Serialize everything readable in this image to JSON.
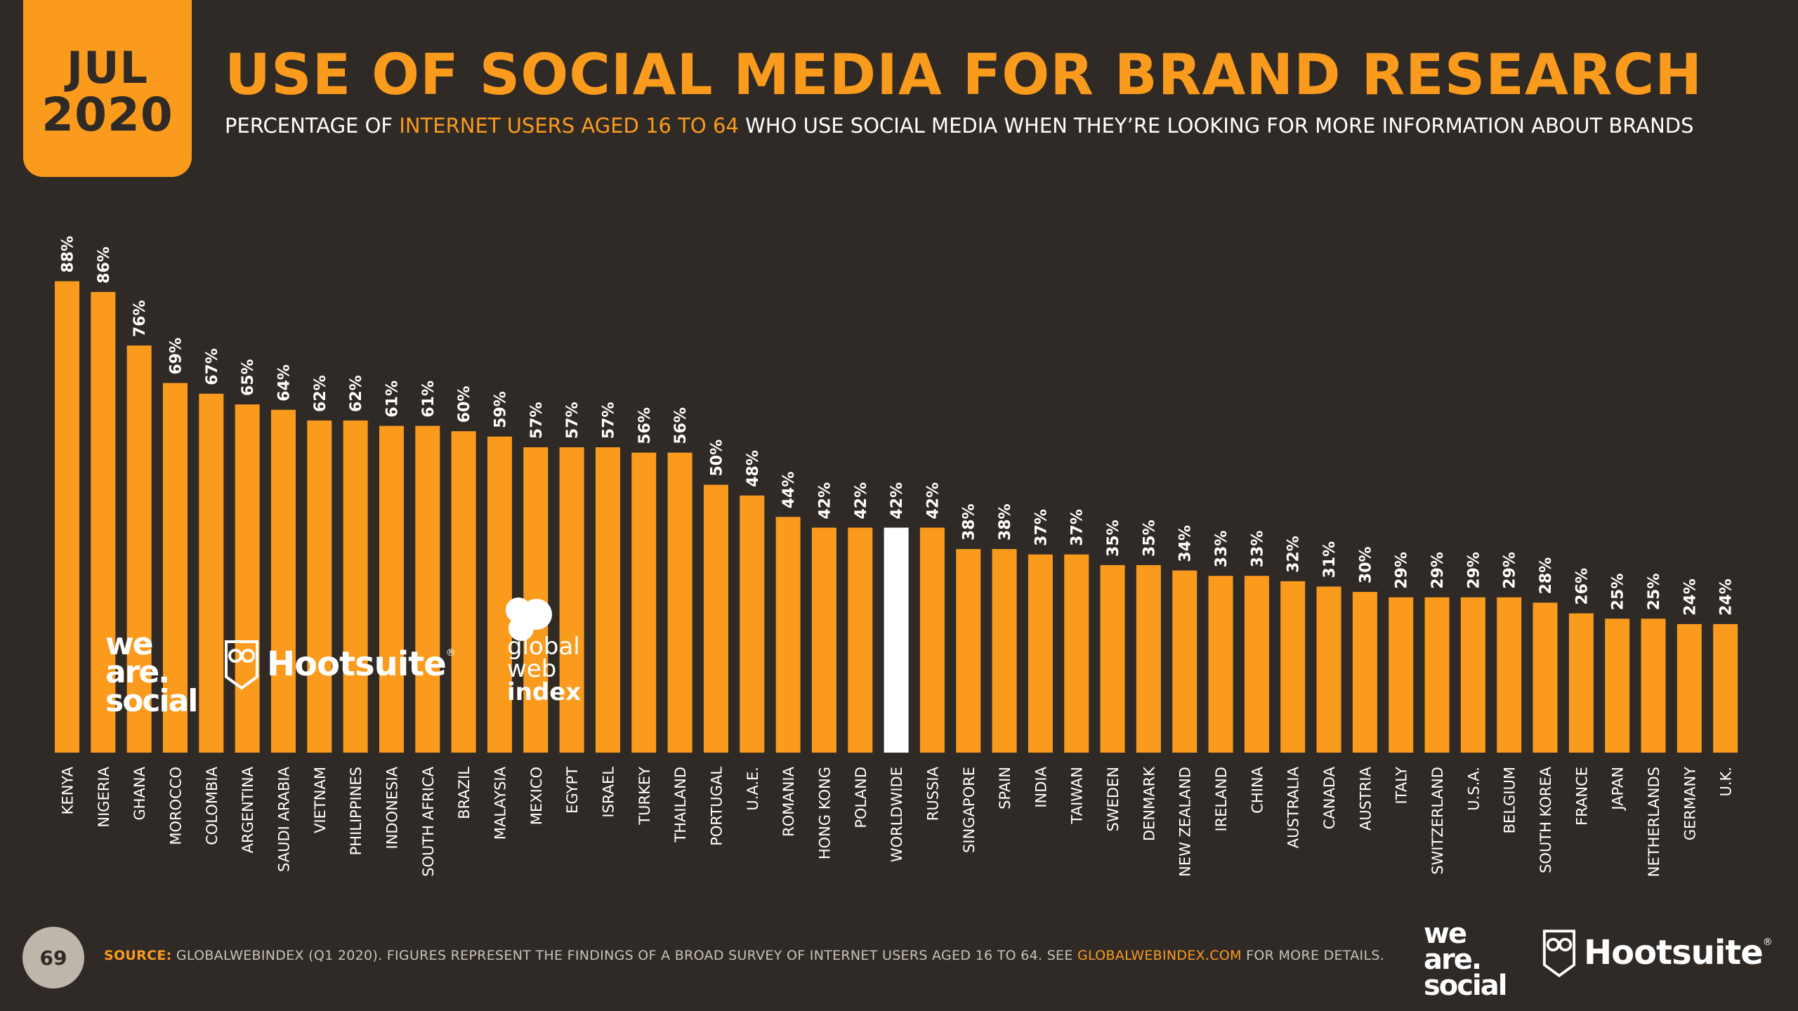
{
  "badge": {
    "month": "JUL",
    "year": "2020"
  },
  "title": "USE OF SOCIAL MEDIA FOR BRAND RESEARCH",
  "subtitle": {
    "part1": "PERCENTAGE OF ",
    "highlight": "INTERNET USERS AGED 16 TO 64",
    "part2": " WHO USE SOCIAL MEDIA WHEN THEY’RE LOOKING FOR MORE INFORMATION ABOUT BRANDS"
  },
  "colors": {
    "background": "#2f2a26",
    "accent": "#fb9b1e",
    "highlight_bar": "#ffffff"
  },
  "chart_data": {
    "type": "bar",
    "title": "USE OF SOCIAL MEDIA FOR BRAND RESEARCH",
    "xlabel": "",
    "ylabel": "",
    "ylim": [
      0,
      100
    ],
    "value_suffix": "%",
    "highlight_category": "WORLDWIDE",
    "categories": [
      "KENYA",
      "NIGERIA",
      "GHANA",
      "MOROCCO",
      "COLOMBIA",
      "ARGENTINA",
      "SAUDI ARABIA",
      "VIETNAM",
      "PHILIPPINES",
      "INDONESIA",
      "SOUTH AFRICA",
      "BRAZIL",
      "MALAYSIA",
      "MEXICO",
      "EGYPT",
      "ISRAEL",
      "TURKEY",
      "THAILAND",
      "PORTUGAL",
      "U.A.E.",
      "ROMANIA",
      "HONG KONG",
      "POLAND",
      "WORLDWIDE",
      "RUSSIA",
      "SINGAPORE",
      "SPAIN",
      "INDIA",
      "TAIWAN",
      "SWEDEN",
      "DENMARK",
      "NEW ZEALAND",
      "IRELAND",
      "CHINA",
      "AUSTRALIA",
      "CANADA",
      "AUSTRIA",
      "ITALY",
      "SWITZERLAND",
      "U.S.A.",
      "BELGIUM",
      "SOUTH KOREA",
      "FRANCE",
      "JAPAN",
      "NETHERLANDS",
      "GERMANY",
      "U.K."
    ],
    "values": [
      88,
      86,
      76,
      69,
      67,
      65,
      64,
      62,
      62,
      61,
      61,
      60,
      59,
      57,
      57,
      57,
      56,
      56,
      50,
      48,
      44,
      42,
      42,
      42,
      42,
      38,
      38,
      37,
      37,
      35,
      35,
      34,
      33,
      33,
      32,
      31,
      30,
      29,
      29,
      29,
      29,
      28,
      26,
      25,
      25,
      24,
      24
    ]
  },
  "logos": {
    "we_are_social": [
      "we",
      "are.",
      "social"
    ],
    "hootsuite": "Hootsuite",
    "hootsuite_mark": "®",
    "gwi": [
      "global",
      "web",
      "index"
    ]
  },
  "footer": {
    "page_number": "69",
    "source_label": "SOURCE:",
    "source_text": " GLOBALWEBINDEX (Q1 2020). FIGURES REPRESENT THE FINDINGS OF A BROAD SURVEY OF INTERNET USERS AGED 16 TO 64. SEE ",
    "source_link": "GLOBALWEBINDEX.COM",
    "source_end": " FOR MORE DETAILS."
  }
}
